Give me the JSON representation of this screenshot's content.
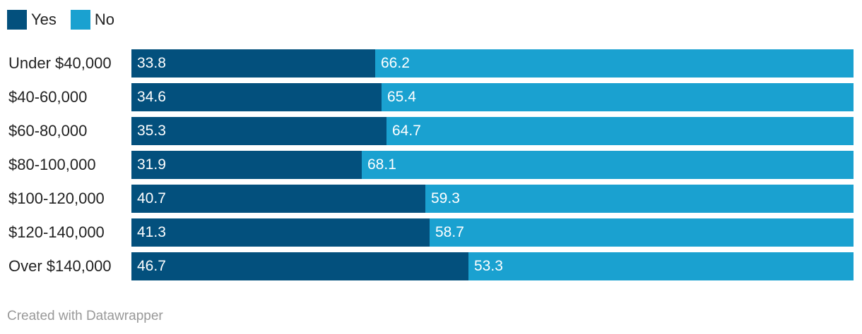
{
  "chart_data": {
    "type": "bar",
    "orientation": "horizontal",
    "stacked": true,
    "categories": [
      "Under $40,000",
      "$40-60,000",
      "$60-80,000",
      "$80-100,000",
      "$100-120,000",
      "$120-140,000",
      "Over $140,000"
    ],
    "series": [
      {
        "name": "Yes",
        "color": "#03507d",
        "values": [
          33.8,
          34.6,
          35.3,
          31.9,
          40.7,
          41.3,
          46.7
        ]
      },
      {
        "name": "No",
        "color": "#1aa1d0",
        "values": [
          66.2,
          65.4,
          64.7,
          68.1,
          59.3,
          58.7,
          53.3
        ]
      }
    ],
    "xlim": [
      0,
      100
    ],
    "legend_position": "top-left",
    "grid": false
  },
  "footer": {
    "credit": "Created with Datawrapper"
  }
}
